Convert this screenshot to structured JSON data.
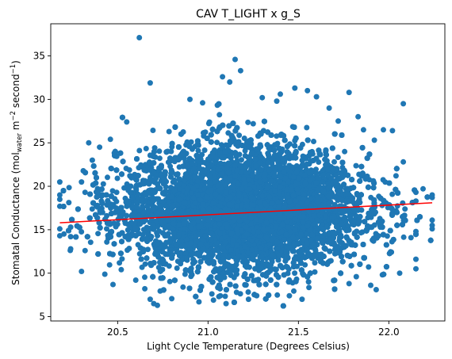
{
  "chart_data": {
    "type": "scatter",
    "title": "CAV T_LIGHT x g_S",
    "xlabel": "Light Cycle Temperature (Degrees Celsius)",
    "ylabel": {
      "prefix": "Stomatal Conductance (mol",
      "subscript": "water",
      "middle": " m",
      "sup1": "−2",
      "middle2": " second",
      "sup2": "−1",
      "suffix": ")"
    },
    "xlim": [
      20.13,
      22.31
    ],
    "ylim": [
      4.5,
      38.7
    ],
    "xticks": [
      {
        "value": 20.5,
        "label": "20.5"
      },
      {
        "value": 21.0,
        "label": "21.0"
      },
      {
        "value": 21.5,
        "label": "21.5"
      },
      {
        "value": 22.0,
        "label": "22.0"
      }
    ],
    "yticks": [
      {
        "value": 5,
        "label": "5"
      },
      {
        "value": 10,
        "label": "10"
      },
      {
        "value": 15,
        "label": "15"
      },
      {
        "value": 20,
        "label": "20"
      },
      {
        "value": 25,
        "label": "25"
      },
      {
        "value": 30,
        "label": "30"
      },
      {
        "value": 35,
        "label": "35"
      }
    ],
    "grid": false,
    "colors": {
      "points": "#1f77b4",
      "fit_line": "#ff0000"
    },
    "series": [
      {
        "kind": "scatter",
        "distribution": {
          "x_range": [
            20.18,
            22.24
          ],
          "x_center": 21.2,
          "y_mean": 17.2,
          "y_sd": 3.9,
          "count": 14000
        },
        "points": [
          [
            20.62,
            37.1
          ],
          [
            21.15,
            34.6
          ],
          [
            20.68,
            31.9
          ],
          [
            21.08,
            32.6
          ],
          [
            21.18,
            33.3
          ],
          [
            21.12,
            32.0
          ],
          [
            21.48,
            31.3
          ],
          [
            21.55,
            31.0
          ],
          [
            21.4,
            30.6
          ],
          [
            21.6,
            30.3
          ],
          [
            22.08,
            29.5
          ],
          [
            21.78,
            30.8
          ],
          [
            21.3,
            30.2
          ],
          [
            20.9,
            30.0
          ],
          [
            20.55,
            27.4
          ],
          [
            20.18,
            20.5
          ],
          [
            20.18,
            19.0
          ],
          [
            20.18,
            18.5
          ],
          [
            20.18,
            17.7
          ],
          [
            20.18,
            15.1
          ],
          [
            20.18,
            14.3
          ],
          [
            20.24,
            15.3
          ],
          [
            20.24,
            14.2
          ],
          [
            20.24,
            12.8
          ],
          [
            20.32,
            12.6
          ],
          [
            20.3,
            10.2
          ],
          [
            20.3,
            20.5
          ],
          [
            20.32,
            19.3
          ],
          [
            20.34,
            25.0
          ],
          [
            20.36,
            23.0
          ],
          [
            20.4,
            24.5
          ],
          [
            20.46,
            25.4
          ],
          [
            20.52,
            10.4
          ],
          [
            20.6,
            9.2
          ],
          [
            20.65,
            8.2
          ],
          [
            20.68,
            7.0
          ],
          [
            20.7,
            6.5
          ],
          [
            20.72,
            6.3
          ],
          [
            20.95,
            6.7
          ],
          [
            21.03,
            6.9
          ],
          [
            21.06,
            7.3
          ],
          [
            21.1,
            6.5
          ],
          [
            21.45,
            7.4
          ],
          [
            21.52,
            7.0
          ],
          [
            21.78,
            8.8
          ],
          [
            21.82,
            9.6
          ],
          [
            21.9,
            8.6
          ],
          [
            21.93,
            8.1
          ],
          [
            22.06,
            10.0
          ],
          [
            22.15,
            10.5
          ],
          [
            22.15,
            11.6
          ],
          [
            22.24,
            19.0
          ],
          [
            22.24,
            18.7
          ],
          [
            22.24,
            16.1
          ],
          [
            22.24,
            15.5
          ],
          [
            22.24,
            15.1
          ],
          [
            22.15,
            19.3
          ],
          [
            22.15,
            18.3
          ],
          [
            22.15,
            14.8
          ],
          [
            22.04,
            21.2
          ],
          [
            22.08,
            22.8
          ],
          [
            22.02,
            26.4
          ],
          [
            21.97,
            26.5
          ],
          [
            21.92,
            25.3
          ],
          [
            21.86,
            26.5
          ],
          [
            21.83,
            28.0
          ],
          [
            21.72,
            27.5
          ],
          [
            21.67,
            29.0
          ],
          [
            21.38,
            29.8
          ],
          [
            20.97,
            29.6
          ]
        ]
      },
      {
        "kind": "line",
        "name": "linear fit",
        "x": [
          20.18,
          22.24
        ],
        "y": [
          15.8,
          18.1
        ]
      }
    ]
  }
}
